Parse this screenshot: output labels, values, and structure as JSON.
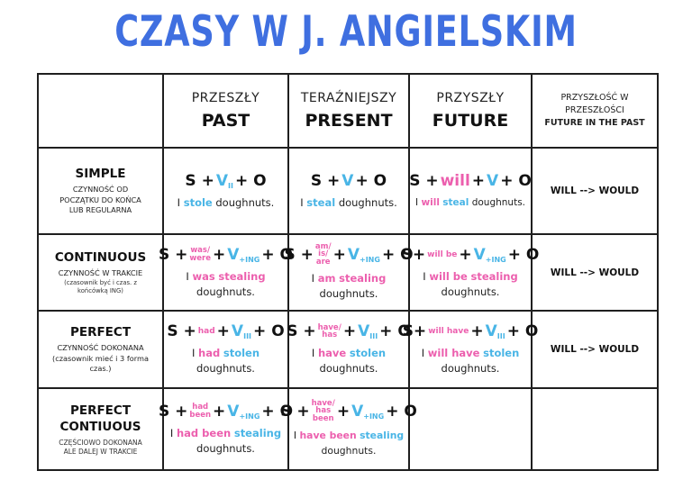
{
  "title": "CZASY W J. ANGIELSKIM",
  "colors": {
    "title": "#3f6fe0",
    "verb": "#49b5e6",
    "auxiliary": "#ec5fae",
    "text": "#1a1a1a"
  },
  "headers": {
    "past": {
      "pl": "PRZESZŁY",
      "en": "PAST"
    },
    "present": {
      "pl": "TERAŹNIEJSZY",
      "en": "PRESENT"
    },
    "future": {
      "pl": "PRZYSZŁY",
      "en": "FUTURE"
    },
    "future_in_past": {
      "pl_line1": "PRZYSZŁOŚĆ W",
      "pl_line2": "PRZESZŁOŚCI",
      "en": "FUTURE IN THE PAST"
    }
  },
  "rows": {
    "simple": {
      "name": "SIMPLE",
      "desc1": "CZYNNOŚĆ OD",
      "desc2": "POCZĄTKU DO KOŃCA",
      "desc3": "LUB REGULARNA",
      "past": {
        "s": "S +",
        "v": "V",
        "sub": "II",
        "o": "+ O",
        "ex_i": "I",
        "ex_main": "stole",
        "ex_rest": "doughnuts."
      },
      "present": {
        "s": "S +",
        "v": "V",
        "o": "+ O",
        "ex_i": "I",
        "ex_main": "steal",
        "ex_rest": "doughnuts."
      },
      "future": {
        "s": "S +",
        "aux": "will",
        "plus": "+",
        "v": "V",
        "o": "+ O",
        "ex_i": "I",
        "ex_aux": "will",
        "ex_main": "steal",
        "ex_rest": "doughnuts."
      },
      "future_in_past": "WILL --> WOULD"
    },
    "continuous": {
      "name": "CONTINUOUS",
      "desc1": "CZYNNOŚĆ W TRAKCIE",
      "sub1": "(czasownik być i czas. z",
      "sub2": "końcówką ING)",
      "past": {
        "s": "S +",
        "aux1": "was/",
        "aux2": "were",
        "plus": "+",
        "v": "V",
        "sub": "+ING",
        "o": "+ O",
        "ex_i": "I",
        "ex_aux": "was",
        "ex_main": "stealing",
        "ex_rest": "doughnuts."
      },
      "present": {
        "s": "S +",
        "aux1": "am/",
        "aux2": "is/",
        "aux3": "are",
        "plus": "+",
        "v": "V",
        "sub": "+ING",
        "o": "+ O",
        "ex_i": "I",
        "ex_aux": "am",
        "ex_main": "stealing",
        "ex_rest": "doughnuts."
      },
      "future": {
        "s": "S+",
        "aux": "will be",
        "plus": "+",
        "v": "V",
        "sub": "+ING",
        "o": "+ O",
        "ex_i": "I",
        "ex_aux": "will be",
        "ex_main": "stealing",
        "ex_rest": "doughnuts."
      },
      "future_in_past": "WILL --> WOULD"
    },
    "perfect": {
      "name": "PERFECT",
      "desc1": "CZYNNOŚĆ DOKONANA",
      "sub1": "(czasownik mieć i 3 forma",
      "sub2": "czas.)",
      "past": {
        "s": "S +",
        "aux": "had",
        "plus": "+",
        "v": "V",
        "sub": "III",
        "o": "+ O",
        "ex_i": "I",
        "ex_aux": "had",
        "ex_main": "stolen",
        "ex_rest": "doughnuts."
      },
      "present": {
        "s": "S +",
        "aux1": "have/",
        "aux2": "has",
        "plus": "+",
        "v": "V",
        "sub": "III",
        "o": "+ O",
        "ex_i": "I",
        "ex_aux": "have",
        "ex_main": "stolen",
        "ex_rest": "doughnuts."
      },
      "future": {
        "s": "S+",
        "aux": "will have",
        "plus": "+",
        "v": "V",
        "sub": "III",
        "o": "+ O",
        "ex_i": "I",
        "ex_aux": "will have",
        "ex_main": "stolen",
        "ex_rest": "doughnuts."
      },
      "future_in_past": "WILL --> WOULD"
    },
    "perfect_continuous": {
      "name1": "PERFECT",
      "name2": "CONTIUOUS",
      "desc1": "CZĘŚCIOWO DOKONANA",
      "desc2": "ALE DALEJ W TRAKCIE",
      "past": {
        "s": "S +",
        "aux1": "had",
        "aux2": "been",
        "plus": "+",
        "v": "V",
        "sub": "+ING",
        "o": "+ O",
        "ex_i": "I",
        "ex_aux": "had been",
        "ex_main": "stealing",
        "ex_rest": "doughnuts."
      },
      "present": {
        "s": "S +",
        "aux1": "have/",
        "aux2": "has",
        "aux3": "been",
        "plus": "+",
        "v": "V",
        "sub": "+ING",
        "o": "+ O",
        "ex_i": "I",
        "ex_aux": "have been",
        "ex_main": "stealing",
        "ex_rest": "doughnuts."
      }
    }
  }
}
